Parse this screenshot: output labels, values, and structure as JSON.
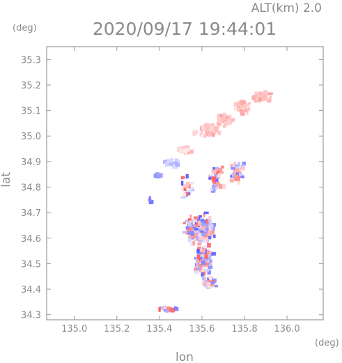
{
  "chart_data": {
    "type": "heatmap",
    "title": "2020/09/17 19:44:01",
    "subtitle": "ALT(km) 2.0",
    "xlabel": "lon",
    "ylabel": "lat",
    "xunit": "(deg)",
    "yunit": "(deg)",
    "xlim": [
      134.87,
      136.17
    ],
    "ylim": [
      34.28,
      35.35
    ],
    "x_ticks": [
      135.0,
      135.2,
      135.4,
      135.6,
      135.8,
      136.0
    ],
    "x_tick_labels": [
      "135.0",
      "135.2",
      "135.4",
      "135.6",
      "135.8",
      "136.0"
    ],
    "y_ticks": [
      34.3,
      34.4,
      34.5,
      34.6,
      34.7,
      34.8,
      34.9,
      35.0,
      35.1,
      35.2,
      35.3
    ],
    "y_tick_labels": [
      "34.3",
      "34.4",
      "34.5",
      "34.6",
      "34.7",
      "34.8",
      "34.9",
      "35.0",
      "35.1",
      "35.2",
      "35.3"
    ],
    "grid": false,
    "colors": {
      "positive": "#ff8a8a",
      "negative": "#8a8aff",
      "neutral_positive": "#ffd6d6",
      "neutral_negative": "#d6d6ff",
      "axis": "#8a8a8a",
      "frame": "#9a9a9a"
    },
    "clusters": [
      {
        "lon": 135.62,
        "lat": 35.03,
        "sx": 0.05,
        "sy": 0.02,
        "n": 60,
        "v": 0.3
      },
      {
        "lon": 135.7,
        "lat": 35.07,
        "sx": 0.03,
        "sy": 0.018,
        "n": 40,
        "v": 0.3
      },
      {
        "lon": 135.78,
        "lat": 35.12,
        "sx": 0.03,
        "sy": 0.02,
        "n": 40,
        "v": 0.3
      },
      {
        "lon": 135.88,
        "lat": 35.16,
        "sx": 0.035,
        "sy": 0.015,
        "n": 50,
        "v": 0.35
      },
      {
        "lon": 135.51,
        "lat": 34.95,
        "sx": 0.03,
        "sy": 0.012,
        "n": 25,
        "v": 0.2
      },
      {
        "lon": 135.38,
        "lat": 34.85,
        "sx": 0.012,
        "sy": 0.008,
        "n": 8,
        "v": -0.5
      },
      {
        "lon": 135.45,
        "lat": 34.9,
        "sx": 0.03,
        "sy": 0.015,
        "n": 20,
        "v": -0.2
      },
      {
        "lon": 135.52,
        "lat": 34.8,
        "sx": 0.03,
        "sy": 0.03,
        "n": 20,
        "v": 0.0
      },
      {
        "lon": 135.66,
        "lat": 34.84,
        "sx": 0.03,
        "sy": 0.04,
        "n": 50,
        "v": 0.0
      },
      {
        "lon": 135.76,
        "lat": 34.86,
        "sx": 0.03,
        "sy": 0.03,
        "n": 40,
        "v": 0.0
      },
      {
        "lon": 135.58,
        "lat": 34.64,
        "sx": 0.05,
        "sy": 0.04,
        "n": 240,
        "v": 0.0
      },
      {
        "lon": 135.6,
        "lat": 34.52,
        "sx": 0.03,
        "sy": 0.04,
        "n": 110,
        "v": 0.0
      },
      {
        "lon": 135.63,
        "lat": 34.43,
        "sx": 0.02,
        "sy": 0.02,
        "n": 35,
        "v": 0.0
      },
      {
        "lon": 135.43,
        "lat": 34.33,
        "sx": 0.04,
        "sy": 0.006,
        "n": 18,
        "v": 0.0
      },
      {
        "lon": 135.35,
        "lat": 34.76,
        "sx": 0.004,
        "sy": 0.01,
        "n": 3,
        "v": -0.6
      }
    ]
  }
}
